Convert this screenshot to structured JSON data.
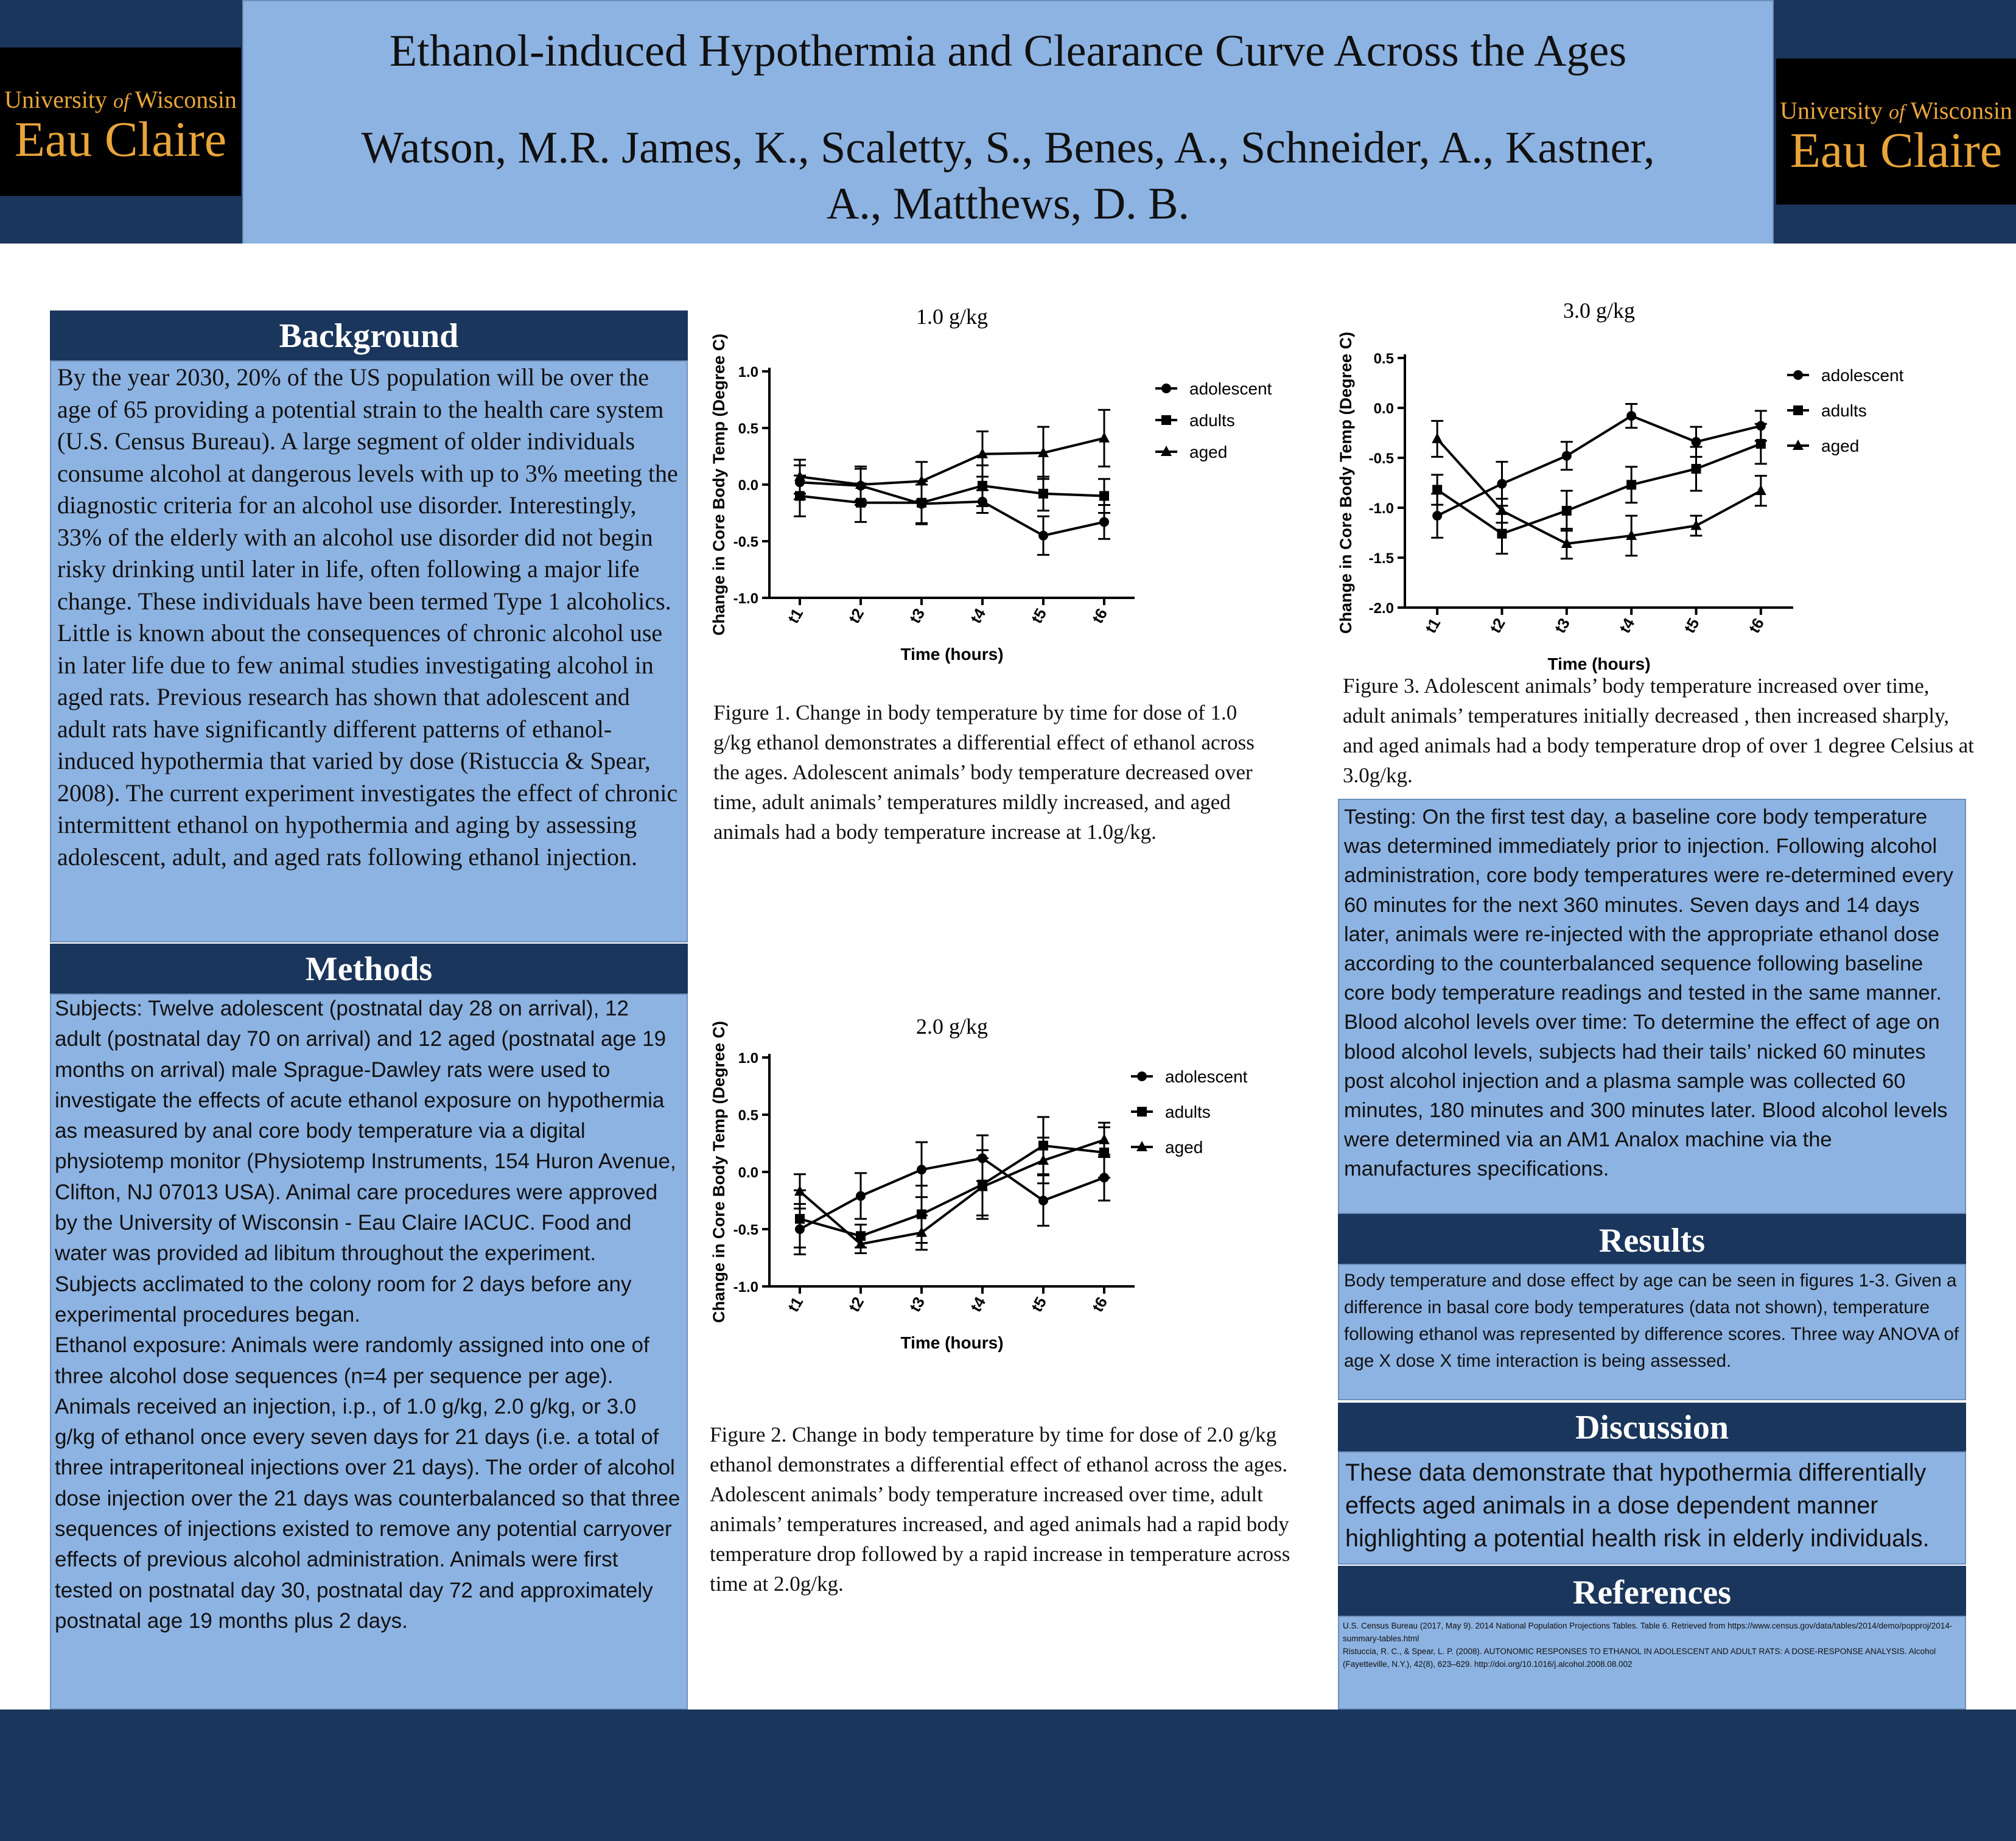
{
  "title": "Ethanol-induced Hypothermia and Clearance Curve Across the Ages",
  "authors": "Watson, M.R. James, K., Scaletty, S., Benes, A., Schneider, A., Kastner, A., Matthews, D. B.",
  "logo": {
    "line1_a": "University ",
    "line1_b": "of",
    "line1_c": " Wisconsin",
    "line2": "Eau Claire"
  },
  "colors": {
    "navy": "#1b365d",
    "panel": "#8db3e2",
    "logo_gold": "#e9a53a"
  },
  "sections": {
    "background": {
      "heading": "Background",
      "body": "By the year 2030, 20% of the US population will be over the age of 65 providing a potential strain to the health care system (U.S. Census Bureau). A large segment of older individuals consume alcohol at dangerous levels with up to 3% meeting the diagnostic criteria for an alcohol use disorder. Interestingly, 33%  of the elderly with an alcohol use disorder did not begin risky drinking until later in life, often following a major life change. These individuals have been termed Type 1 alcoholics. Little is known about the consequences of chronic alcohol use in later life due to few animal studies investigating alcohol in aged rats. Previous research has shown that adolescent and adult rats have significantly different patterns of ethanol-induced hypothermia that varied by dose (Ristuccia & Spear, 2008). The current experiment investigates the effect of chronic intermittent ethanol on hypothermia and aging by assessing adolescent, adult, and aged rats following ethanol injection."
    },
    "methods": {
      "heading": "Methods",
      "subjects": "Subjects: Twelve adolescent (postnatal day 28 on arrival), 12 adult (postnatal day 70 on arrival) and 12 aged (postnatal age 19 months on arrival) male Sprague-Dawley rats were used to investigate the effects of acute ethanol exposure on hypothermia as measured by anal core body temperature via a digital physiotemp monitor (Physiotemp Instruments, 154 Huron Avenue, Clifton, NJ 07013 USA). Animal care procedures were approved by the University of Wisconsin - Eau Claire IACUC. Food and water was provided ad libitum throughout the experiment. Subjects acclimated to the colony room for 2 days before any experimental procedures began.",
      "exposure": "Ethanol exposure: Animals were randomly assigned into one of three alcohol dose sequences (n=4 per sequence per age). Animals received an injection, i.p., of 1.0 g/kg, 2.0 g/kg, or 3.0 g/kg of ethanol once every seven days for 21 days (i.e. a total of three intraperitoneal injections over 21 days). The order of alcohol dose injection over the 21 days was counterbalanced so that three sequences of injections existed to remove any potential carryover effects of previous alcohol administration. Animals were first tested on postnatal day 30, postnatal day 72 and approximately postnatal age 19 months plus 2 days."
    },
    "testing": {
      "body": "Testing: On the first test day, a baseline core body temperature was determined immediately prior to injection. Following alcohol administration, core body temperatures were re-determined every 60 minutes for the next 360 minutes. Seven days and 14 days later, animals were re-injected with the appropriate ethanol dose according to the counterbalanced sequence following baseline core body temperature readings and tested in the same manner.",
      "bac": "Blood alcohol levels over time: To determine the effect of age on blood alcohol levels, subjects had their tails’ nicked 60 minutes post alcohol injection and a plasma sample was collected 60 minutes, 180 minutes and 300 minutes later. Blood alcohol levels were determined via an AM1 Analox machine via the manufactures specifications."
    },
    "results": {
      "heading": "Results",
      "body": "Body temperature and dose effect by age can be seen in figures 1-3. Given a difference in basal core body temperatures (data not shown), temperature following ethanol was  represented by difference scores. Three way ANOVA of age X dose X time interaction is being assessed."
    },
    "discussion": {
      "heading": "Discussion",
      "body": "These data demonstrate that hypothermia differentially effects aged animals in a dose dependent manner highlighting a potential health risk in elderly individuals."
    },
    "references": {
      "heading": "References",
      "ref1": "U.S. Census Bureau (2017, May 9). 2014 National Population Projections Tables. Table 6. Retrieved from https://www.census.gov/data/tables/2014/demo/popproj/2014-summary-tables.html",
      "ref2": "Ristuccia, R. C., & Spear, L. P. (2008). AUTONOMIC RESPONSES TO ETHANOL IN ADOLESCENT AND ADULT RATS: A DOSE-RESPONSE ANALYSIS. Alcohol (Fayetteville, N.Y.), 42(8), 623–629. http://doi.org/10.1016/j.alcohol.2008.08.002"
    }
  },
  "captions": {
    "fig1": "Figure 1. Change in body temperature by time for dose of 1.0 g/kg ethanol demonstrates a differential effect of ethanol across the ages. Adolescent animals’ body temperature decreased over time, adult animals’ temperatures mildly increased, and aged animals had a body temperature increase at 1.0g/kg.",
    "fig2": "Figure 2. Change in body temperature by time for dose of 2.0 g/kg ethanol demonstrates a differential effect of ethanol across the ages. Adolescent animals’ body temperature increased over time, adult animals’ temperatures increased, and aged animals had a rapid body temperature drop followed by a rapid increase in temperature across time at 2.0g/kg.",
    "fig3": "Figure 3. Adolescent animals’ body temperature increased over time, adult animals’ temperatures initially decreased , then increased sharply, and aged animals had a body temperature drop of over 1 degree Celsius at 3.0g/kg."
  },
  "chart_data": [
    {
      "type": "line",
      "title": "1.0 g/kg",
      "xlabel": "Time (hours)",
      "ylabel": "Change in Core Body Temp (Degree C)",
      "categories": [
        "t1",
        "t2",
        "t3",
        "t4",
        "t5",
        "t6"
      ],
      "ylim": [
        -1.0,
        1.0
      ],
      "yticks": [
        "1.0",
        "0.5",
        "0.0",
        "-0.5",
        "-1.0"
      ],
      "legend_position": "top-right",
      "series": [
        {
          "name": "adolescent",
          "marker": "circle",
          "values": [
            0.02,
            -0.01,
            -0.17,
            -0.15,
            -0.45,
            -0.33
          ],
          "errors": [
            0.15,
            0.17,
            0.17,
            0.1,
            0.17,
            0.15
          ]
        },
        {
          "name": "adults",
          "marker": "square",
          "values": [
            -0.1,
            -0.16,
            -0.16,
            -0.01,
            -0.08,
            -0.1
          ],
          "errors": [
            0.18,
            0.17,
            0.19,
            0.18,
            0.15,
            0.15
          ]
        },
        {
          "name": "aged",
          "marker": "triangle",
          "values": [
            0.07,
            0.0,
            0.03,
            0.27,
            0.28,
            0.41
          ],
          "errors": [
            0.15,
            0.14,
            0.17,
            0.2,
            0.23,
            0.25
          ]
        }
      ]
    },
    {
      "type": "line",
      "title": "2.0 g/kg",
      "xlabel": "Time (hours)",
      "ylabel": "Change in Core Body Temp (Degree C)",
      "categories": [
        "t1",
        "t2",
        "t3",
        "t4",
        "t5",
        "t6"
      ],
      "ylim": [
        -1.0,
        1.0
      ],
      "yticks": [
        "1.0",
        "0.5",
        "0.0",
        "-0.5",
        "-1.0"
      ],
      "legend_position": "top-right",
      "series": [
        {
          "name": "adolescent",
          "marker": "circle",
          "values": [
            -0.5,
            -0.21,
            0.02,
            0.12,
            -0.25,
            -0.05
          ],
          "errors": [
            0.22,
            0.2,
            0.24,
            0.2,
            0.22,
            0.2
          ]
        },
        {
          "name": "adults",
          "marker": "square",
          "values": [
            -0.41,
            -0.56,
            -0.37,
            -0.11,
            0.23,
            0.17
          ],
          "errors": [
            0.25,
            0.1,
            0.25,
            0.3,
            0.25,
            0.22
          ]
        },
        {
          "name": "aged",
          "marker": "triangle",
          "values": [
            -0.17,
            -0.63,
            -0.53,
            -0.13,
            0.1,
            0.28
          ],
          "errors": [
            0.15,
            0.08,
            0.15,
            0.25,
            0.2,
            0.15
          ]
        }
      ]
    },
    {
      "type": "line",
      "title": "3.0 g/kg",
      "xlabel": "Time (hours)",
      "ylabel": "Change in Core Body Temp (Degree C)",
      "categories": [
        "t1",
        "t2",
        "t3",
        "t4",
        "t5",
        "t6"
      ],
      "ylim": [
        -2.0,
        0.5
      ],
      "yticks": [
        "0.5",
        "0.0",
        "-0.5",
        "-1.0",
        "-1.5",
        "-2.0"
      ],
      "legend_position": "top-right",
      "series": [
        {
          "name": "adolescent",
          "marker": "circle",
          "values": [
            -1.08,
            -0.76,
            -0.48,
            -0.08,
            -0.34,
            -0.18
          ],
          "errors": [
            0.22,
            0.22,
            0.14,
            0.12,
            0.15,
            0.15
          ]
        },
        {
          "name": "adults",
          "marker": "square",
          "values": [
            -0.82,
            -1.26,
            -1.03,
            -0.77,
            -0.61,
            -0.36
          ],
          "errors": [
            0.15,
            0.2,
            0.2,
            0.18,
            0.22,
            0.2
          ]
        },
        {
          "name": "aged",
          "marker": "triangle",
          "values": [
            -0.31,
            -1.03,
            -1.36,
            -1.28,
            -1.18,
            -0.83
          ],
          "errors": [
            0.18,
            0.12,
            0.15,
            0.2,
            0.1,
            0.15
          ]
        }
      ]
    }
  ]
}
